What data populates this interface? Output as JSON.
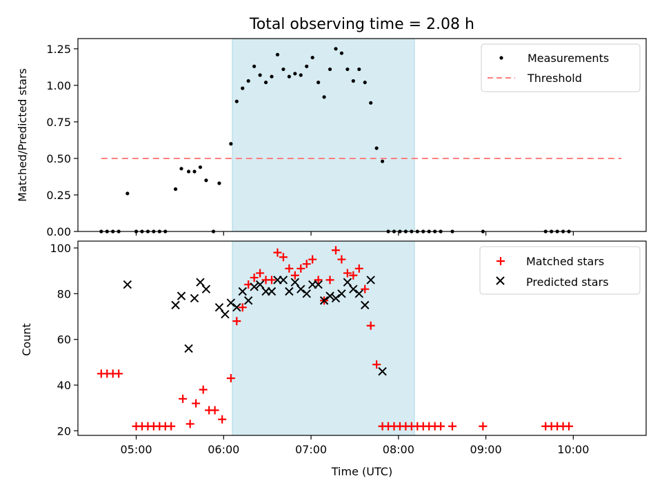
{
  "chart_data": [
    {
      "type": "scatter",
      "title": "Total observing time = 2.08 h",
      "xlabel": "",
      "ylabel": "Matched/Predicted stars",
      "x_range": [
        "04:20",
        "10:50"
      ],
      "ylim": [
        0,
        1.32
      ],
      "y_ticks": [
        0.0,
        0.25,
        0.5,
        0.75,
        1.0,
        1.25
      ],
      "y_tick_labels": [
        "0.00",
        "0.25",
        "0.50",
        "0.75",
        "1.00",
        "1.25"
      ],
      "x_tick_labels": [],
      "highlight_span": [
        "06:06",
        "08:11"
      ],
      "legend_position": "upper right",
      "threshold": {
        "name": "Threshold",
        "value": 0.5,
        "x_range": [
          "04:36",
          "10:33"
        ]
      },
      "series": [
        {
          "name": "Measurements",
          "points": [
            [
              "04:36",
              0
            ],
            [
              "04:40",
              0
            ],
            [
              "04:44",
              0
            ],
            [
              "04:48",
              0
            ],
            [
              "04:54",
              0.26
            ],
            [
              "05:00",
              0
            ],
            [
              "05:04",
              0
            ],
            [
              "05:08",
              0
            ],
            [
              "05:12",
              0
            ],
            [
              "05:16",
              0
            ],
            [
              "05:20",
              0
            ],
            [
              "05:27",
              0.29
            ],
            [
              "05:31",
              0.43
            ],
            [
              "05:36",
              0.41
            ],
            [
              "05:40",
              0.41
            ],
            [
              "05:44",
              0.44
            ],
            [
              "05:48",
              0.35
            ],
            [
              "05:53",
              0
            ],
            [
              "05:57",
              0.33
            ],
            [
              "06:05",
              0.6
            ],
            [
              "06:09",
              0.89
            ],
            [
              "06:13",
              0.98
            ],
            [
              "06:17",
              1.03
            ],
            [
              "06:21",
              1.13
            ],
            [
              "06:25",
              1.07
            ],
            [
              "06:29",
              1.02
            ],
            [
              "06:33",
              1.06
            ],
            [
              "06:37",
              1.21
            ],
            [
              "06:41",
              1.11
            ],
            [
              "06:45",
              1.06
            ],
            [
              "06:49",
              1.08
            ],
            [
              "06:53",
              1.07
            ],
            [
              "06:57",
              1.13
            ],
            [
              "07:01",
              1.19
            ],
            [
              "07:05",
              1.02
            ],
            [
              "07:09",
              0.92
            ],
            [
              "07:13",
              1.11
            ],
            [
              "07:17",
              1.25
            ],
            [
              "07:21",
              1.22
            ],
            [
              "07:25",
              1.11
            ],
            [
              "07:29",
              1.03
            ],
            [
              "07:33",
              1.11
            ],
            [
              "07:37",
              1.02
            ],
            [
              "07:41",
              0.88
            ],
            [
              "07:45",
              0.57
            ],
            [
              "07:49",
              0.48
            ],
            [
              "07:53",
              0
            ],
            [
              "07:57",
              0
            ],
            [
              "08:01",
              0
            ],
            [
              "08:05",
              0
            ],
            [
              "08:09",
              0
            ],
            [
              "08:13",
              0
            ],
            [
              "08:17",
              0
            ],
            [
              "08:21",
              0
            ],
            [
              "08:25",
              0
            ],
            [
              "08:29",
              0
            ],
            [
              "08:37",
              0
            ],
            [
              "08:58",
              0
            ],
            [
              "09:41",
              0
            ],
            [
              "09:45",
              0
            ],
            [
              "09:49",
              0
            ],
            [
              "09:53",
              0
            ],
            [
              "09:57",
              0
            ]
          ]
        }
      ]
    },
    {
      "type": "scatter",
      "title": "",
      "xlabel": "Time (UTC)",
      "ylabel": "Count",
      "x_range": [
        "04:20",
        "10:50"
      ],
      "ylim": [
        18,
        103
      ],
      "y_ticks": [
        20,
        40,
        60,
        80,
        100
      ],
      "x_ticks": [
        "05:00",
        "06:00",
        "07:00",
        "08:00",
        "09:00",
        "10:00"
      ],
      "x_tick_labels": [
        "05:00",
        "06:00",
        "07:00",
        "08:00",
        "09:00",
        "10:00"
      ],
      "highlight_span": [
        "06:06",
        "08:11"
      ],
      "legend_position": "upper right",
      "series": [
        {
          "name": "Matched stars",
          "marker": "+",
          "color": "#ff0000",
          "points": [
            [
              "04:36",
              45
            ],
            [
              "04:40",
              45
            ],
            [
              "04:44",
              45
            ],
            [
              "04:48",
              45
            ],
            [
              "05:00",
              22
            ],
            [
              "05:04",
              22
            ],
            [
              "05:08",
              22
            ],
            [
              "05:12",
              22
            ],
            [
              "05:16",
              22
            ],
            [
              "05:20",
              22
            ],
            [
              "05:24",
              22
            ],
            [
              "05:32",
              34
            ],
            [
              "05:37",
              23
            ],
            [
              "05:41",
              32
            ],
            [
              "05:46",
              38
            ],
            [
              "05:50",
              29
            ],
            [
              "05:54",
              29
            ],
            [
              "05:59",
              25
            ],
            [
              "06:05",
              43
            ],
            [
              "06:09",
              68
            ],
            [
              "06:13",
              74
            ],
            [
              "06:17",
              84
            ],
            [
              "06:21",
              87
            ],
            [
              "06:25",
              89
            ],
            [
              "06:29",
              86
            ],
            [
              "06:33",
              86
            ],
            [
              "06:37",
              98
            ],
            [
              "06:41",
              96
            ],
            [
              "06:45",
              91
            ],
            [
              "06:49",
              88
            ],
            [
              "06:53",
              91
            ],
            [
              "06:57",
              93
            ],
            [
              "07:01",
              95
            ],
            [
              "07:05",
              86
            ],
            [
              "07:09",
              77
            ],
            [
              "07:13",
              86
            ],
            [
              "07:17",
              99
            ],
            [
              "07:21",
              95
            ],
            [
              "07:25",
              89
            ],
            [
              "07:29",
              88
            ],
            [
              "07:33",
              91
            ],
            [
              "07:37",
              82
            ],
            [
              "07:41",
              66
            ],
            [
              "07:45",
              49
            ],
            [
              "07:49",
              22
            ],
            [
              "07:53",
              22
            ],
            [
              "07:57",
              22
            ],
            [
              "08:01",
              22
            ],
            [
              "08:05",
              22
            ],
            [
              "08:09",
              22
            ],
            [
              "08:13",
              22
            ],
            [
              "08:17",
              22
            ],
            [
              "08:21",
              22
            ],
            [
              "08:25",
              22
            ],
            [
              "08:29",
              22
            ],
            [
              "08:37",
              22
            ],
            [
              "08:58",
              22
            ],
            [
              "09:41",
              22
            ],
            [
              "09:45",
              22
            ],
            [
              "09:49",
              22
            ],
            [
              "09:53",
              22
            ],
            [
              "09:57",
              22
            ]
          ]
        },
        {
          "name": "Predicted stars",
          "marker": "x",
          "color": "#000000",
          "points": [
            [
              "04:54",
              84
            ],
            [
              "05:27",
              75
            ],
            [
              "05:31",
              79
            ],
            [
              "05:36",
              56
            ],
            [
              "05:40",
              78
            ],
            [
              "05:44",
              85
            ],
            [
              "05:48",
              82
            ],
            [
              "05:57",
              74
            ],
            [
              "06:01",
              71
            ],
            [
              "06:05",
              76
            ],
            [
              "06:09",
              74
            ],
            [
              "06:13",
              81
            ],
            [
              "06:17",
              77
            ],
            [
              "06:21",
              83
            ],
            [
              "06:25",
              84
            ],
            [
              "06:29",
              81
            ],
            [
              "06:33",
              81
            ],
            [
              "06:37",
              86
            ],
            [
              "06:41",
              86
            ],
            [
              "06:45",
              81
            ],
            [
              "06:49",
              85
            ],
            [
              "06:53",
              82
            ],
            [
              "06:57",
              80
            ],
            [
              "07:01",
              84
            ],
            [
              "07:05",
              84
            ],
            [
              "07:09",
              77
            ],
            [
              "07:13",
              79
            ],
            [
              "07:17",
              78
            ],
            [
              "07:21",
              80
            ],
            [
              "07:25",
              85
            ],
            [
              "07:29",
              82
            ],
            [
              "07:33",
              80
            ],
            [
              "07:37",
              75
            ],
            [
              "07:41",
              86
            ],
            [
              "07:49",
              46
            ]
          ]
        }
      ]
    }
  ]
}
